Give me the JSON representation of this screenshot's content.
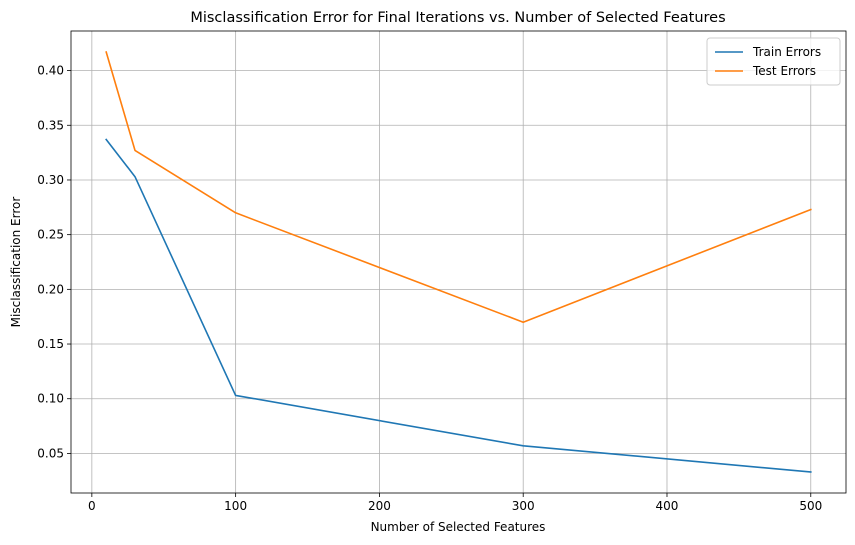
{
  "chart_data": {
    "type": "line",
    "title": "Misclassification Error for Final Iterations vs. Number of Selected Features",
    "xlabel": "Number of Selected Features",
    "ylabel": "Misclassification Error",
    "x": [
      10,
      30,
      100,
      300,
      500
    ],
    "series": [
      {
        "name": "Train Errors",
        "values": [
          0.337,
          0.303,
          0.103,
          0.057,
          0.033
        ],
        "color": "#1f77b4"
      },
      {
        "name": "Test Errors",
        "values": [
          0.417,
          0.327,
          0.27,
          0.17,
          0.273
        ],
        "color": "#ff7f0e"
      }
    ],
    "xlim": [
      -14.5,
      524.5
    ],
    "ylim": [
      0.0138,
      0.4362
    ],
    "xticks": [
      0,
      100,
      200,
      300,
      400,
      500
    ],
    "yticks": [
      0.05,
      0.1,
      0.15,
      0.2,
      0.25,
      0.3,
      0.35,
      0.4
    ],
    "xtick_labels": [
      "0",
      "100",
      "200",
      "300",
      "400",
      "500"
    ],
    "ytick_labels": [
      "0.05",
      "0.10",
      "0.15",
      "0.20",
      "0.25",
      "0.30",
      "0.35",
      "0.40"
    ],
    "grid": true,
    "legend_position": "top-right"
  }
}
